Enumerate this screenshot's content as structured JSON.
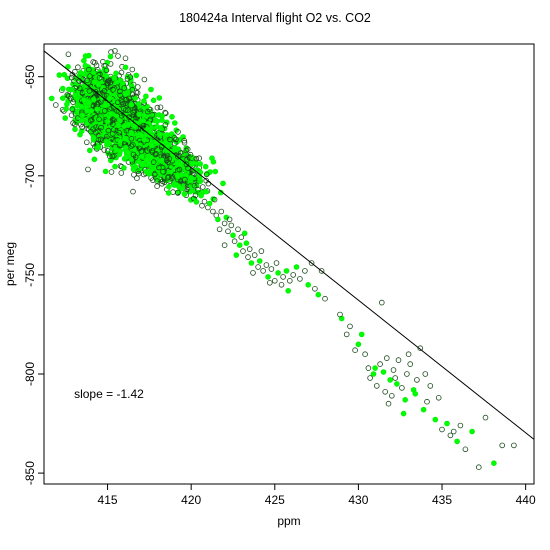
{
  "chart_data": {
    "type": "scatter",
    "title": "180424a   Interval flight O2 vs. CO2",
    "xlabel": "ppm",
    "ylabel": "per meg",
    "xlim": [
      411.2,
      440.5
    ],
    "ylim": [
      -855.5,
      -633.5
    ],
    "x_ticks": [
      415,
      420,
      425,
      430,
      435,
      440
    ],
    "x_tick_labels": [
      "415",
      "420",
      "425",
      "430",
      "435",
      "440"
    ],
    "y_ticks": [
      -850,
      -800,
      -750,
      -700,
      -650
    ],
    "y_tick_labels": [
      "-850",
      "-800",
      "-750",
      "-700",
      "-650"
    ],
    "grid": false,
    "marker": "open-circle",
    "colors": {
      "outline_dark": "#1a4a1a",
      "outline_green": "#00ee00",
      "fill_green": "#00ff00",
      "line": "#000000"
    },
    "annotation": {
      "text": "slope =  -1.42",
      "x": 413.0,
      "y": -812
    },
    "fit_line": {
      "slope": -1.42,
      "points": [
        [
          411.2,
          -637
        ],
        [
          440.5,
          -833
        ]
      ]
    },
    "clusters": [
      {
        "center": [
          414.7,
          -664
        ],
        "spread": [
          0.9,
          8.5
        ],
        "count": 1300
      },
      {
        "center": [
          416.3,
          -676
        ],
        "spread": [
          0.9,
          8.0
        ],
        "count": 900
      },
      {
        "center": [
          418.2,
          -690
        ],
        "spread": [
          0.9,
          6.5
        ],
        "count": 500
      },
      {
        "center": [
          419.5,
          -699
        ],
        "spread": [
          0.8,
          6.0
        ],
        "count": 180
      }
    ],
    "points": [
      [
        420.0,
        -701
      ],
      [
        420.2,
        -705
      ],
      [
        420.4,
        -707
      ],
      [
        420.6,
        -710
      ],
      [
        420.8,
        -713
      ],
      [
        421.0,
        -716
      ],
      [
        421.1,
        -714
      ],
      [
        421.3,
        -718
      ],
      [
        421.5,
        -720
      ],
      [
        421.6,
        -722
      ],
      [
        421.8,
        -718
      ],
      [
        422.0,
        -724
      ],
      [
        422.1,
        -721
      ],
      [
        422.2,
        -728
      ],
      [
        422.4,
        -725
      ],
      [
        422.5,
        -730
      ],
      [
        422.6,
        -733
      ],
      [
        422.8,
        -727
      ],
      [
        422.9,
        -735
      ],
      [
        423.0,
        -731
      ],
      [
        423.1,
        -738
      ],
      [
        423.3,
        -734
      ],
      [
        423.4,
        -741
      ],
      [
        423.5,
        -737
      ],
      [
        423.6,
        -744
      ],
      [
        423.8,
        -740
      ],
      [
        424.0,
        -746
      ],
      [
        424.1,
        -743
      ],
      [
        424.3,
        -748
      ],
      [
        424.5,
        -745
      ],
      [
        424.6,
        -751
      ],
      [
        424.8,
        -747
      ],
      [
        425.0,
        -753
      ],
      [
        425.2,
        -749
      ],
      [
        425.4,
        -755
      ],
      [
        425.5,
        -751
      ],
      [
        425.7,
        -748
      ],
      [
        425.9,
        -753
      ],
      [
        426.1,
        -750
      ],
      [
        426.3,
        -746
      ],
      [
        426.5,
        -752
      ],
      [
        426.8,
        -748
      ],
      [
        427.0,
        -755
      ],
      [
        427.2,
        -744
      ],
      [
        427.4,
        -757
      ],
      [
        427.6,
        -760
      ],
      [
        427.8,
        -748
      ],
      [
        428.0,
        -762
      ],
      [
        420.9,
        -708
      ],
      [
        421.4,
        -712
      ],
      [
        422.3,
        -722
      ],
      [
        423.2,
        -729
      ],
      [
        424.2,
        -738
      ],
      [
        425.1,
        -744
      ],
      [
        422.7,
        -740
      ],
      [
        423.7,
        -749
      ],
      [
        424.7,
        -754
      ],
      [
        425.8,
        -758
      ],
      [
        421.7,
        -727
      ],
      [
        422.0,
        -735
      ],
      [
        429.0,
        -772
      ],
      [
        429.5,
        -776
      ],
      [
        429.8,
        -788
      ],
      [
        430.2,
        -780
      ],
      [
        430.4,
        -790
      ],
      [
        430.6,
        -797
      ],
      [
        430.9,
        -800
      ],
      [
        431.1,
        -806
      ],
      [
        431.3,
        -795
      ],
      [
        431.5,
        -799
      ],
      [
        431.6,
        -809
      ],
      [
        431.7,
        -792
      ],
      [
        431.9,
        -803
      ],
      [
        432.0,
        -811
      ],
      [
        432.1,
        -798
      ],
      [
        432.3,
        -805
      ],
      [
        432.4,
        -793
      ],
      [
        432.6,
        -807
      ],
      [
        432.8,
        -813
      ],
      [
        432.9,
        -800
      ],
      [
        433.1,
        -795
      ],
      [
        433.3,
        -808
      ],
      [
        433.5,
        -803
      ],
      [
        433.7,
        -787
      ],
      [
        433.9,
        -818
      ],
      [
        434.1,
        -814
      ],
      [
        434.3,
        -806
      ],
      [
        434.6,
        -823
      ],
      [
        434.8,
        -812
      ],
      [
        435.0,
        -828
      ],
      [
        435.3,
        -825
      ],
      [
        435.5,
        -831
      ],
      [
        435.7,
        -829
      ],
      [
        435.9,
        -834
      ],
      [
        436.1,
        -826
      ],
      [
        436.4,
        -838
      ],
      [
        436.8,
        -829
      ],
      [
        437.2,
        -847
      ],
      [
        437.6,
        -822
      ],
      [
        438.1,
        -845
      ],
      [
        438.6,
        -836
      ],
      [
        439.3,
        -836
      ],
      [
        431.0,
        -797
      ],
      [
        432.2,
        -802
      ],
      [
        433.0,
        -790
      ],
      [
        433.4,
        -810
      ],
      [
        434.0,
        -800
      ],
      [
        431.8,
        -815
      ],
      [
        432.7,
        -820
      ],
      [
        430.7,
        -802
      ],
      [
        431.4,
        -764
      ],
      [
        430.0,
        -785
      ],
      [
        429.3,
        -780
      ],
      [
        428.9,
        -770
      ]
    ]
  }
}
